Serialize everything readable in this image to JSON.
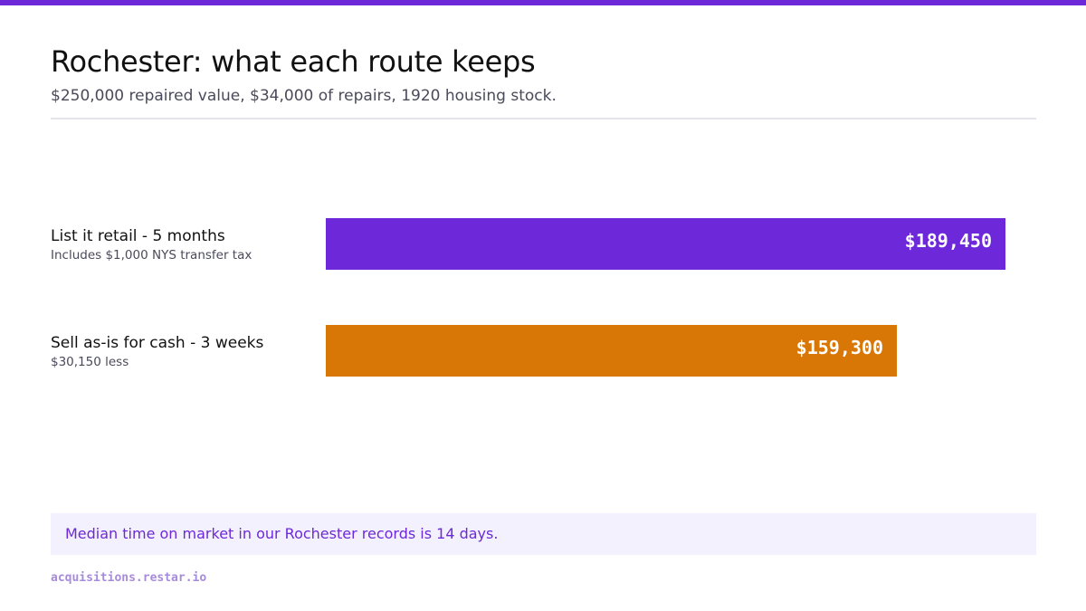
{
  "colors": {
    "accent": "#6d28d9",
    "retail_bar": "#6d28d9",
    "cash_bar": "#d97706",
    "callout_bg": "#f3f1fd",
    "callout_text": "#6d28d9",
    "footer_text": "#a78bdb"
  },
  "header": {
    "title": "Rochester: what each route keeps",
    "subtitle": "$250,000 repaired value, $34,000 of repairs, 1920 housing stock."
  },
  "chart_data": {
    "type": "bar",
    "orientation": "horizontal",
    "categories": [
      "List it retail - 5 months",
      "Sell as-is for cash - 3 weeks"
    ],
    "values": [
      189450,
      159300
    ],
    "value_labels": [
      "$189,450",
      "$159,300"
    ],
    "notes": [
      "Includes $1,000 NYS transfer tax",
      "$30,150 less"
    ],
    "title": "Rochester: what each route keeps",
    "xlabel": "",
    "ylabel": "",
    "grid": false
  },
  "callout": {
    "text": "Median time on market in our Rochester records is 14 days."
  },
  "footer": {
    "text": "acquisitions.restar.io"
  }
}
